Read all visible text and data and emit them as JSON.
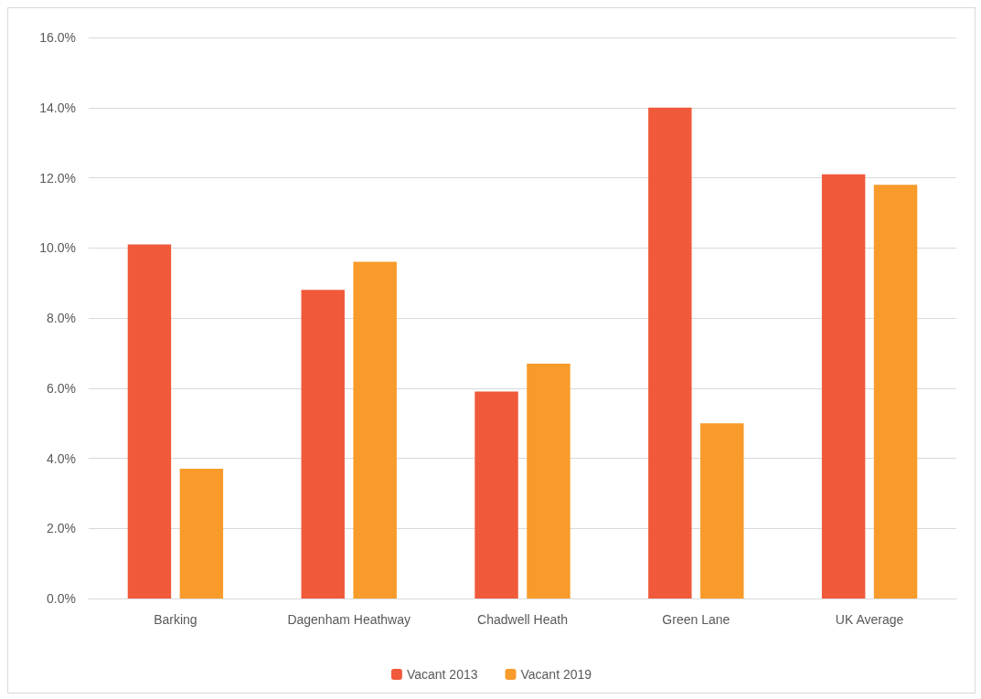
{
  "chart_data": {
    "type": "bar",
    "categories": [
      "Barking",
      "Dagenham Heathway",
      "Chadwell Heath",
      "Green Lane",
      "UK Average"
    ],
    "series": [
      {
        "name": "Vacant 2013",
        "color": "#f05a3b",
        "values": [
          10.1,
          8.8,
          5.9,
          14.0,
          12.1
        ]
      },
      {
        "name": "Vacant 2019",
        "color": "#f89b2a",
        "values": [
          3.7,
          9.6,
          6.7,
          5.0,
          11.8
        ]
      }
    ],
    "ylim": [
      0,
      16
    ],
    "yticks": [
      {
        "value": 0,
        "label": "0.0%"
      },
      {
        "value": 2,
        "label": "2.0%"
      },
      {
        "value": 4,
        "label": "4.0%"
      },
      {
        "value": 6,
        "label": "6.0%"
      },
      {
        "value": 8,
        "label": "8.0%"
      },
      {
        "value": 10,
        "label": "10.0%"
      },
      {
        "value": 12,
        "label": "12.0%"
      },
      {
        "value": 14,
        "label": "14.0%"
      },
      {
        "value": 16,
        "label": "16.0%"
      }
    ],
    "grid": "y",
    "legend": "bottom"
  }
}
